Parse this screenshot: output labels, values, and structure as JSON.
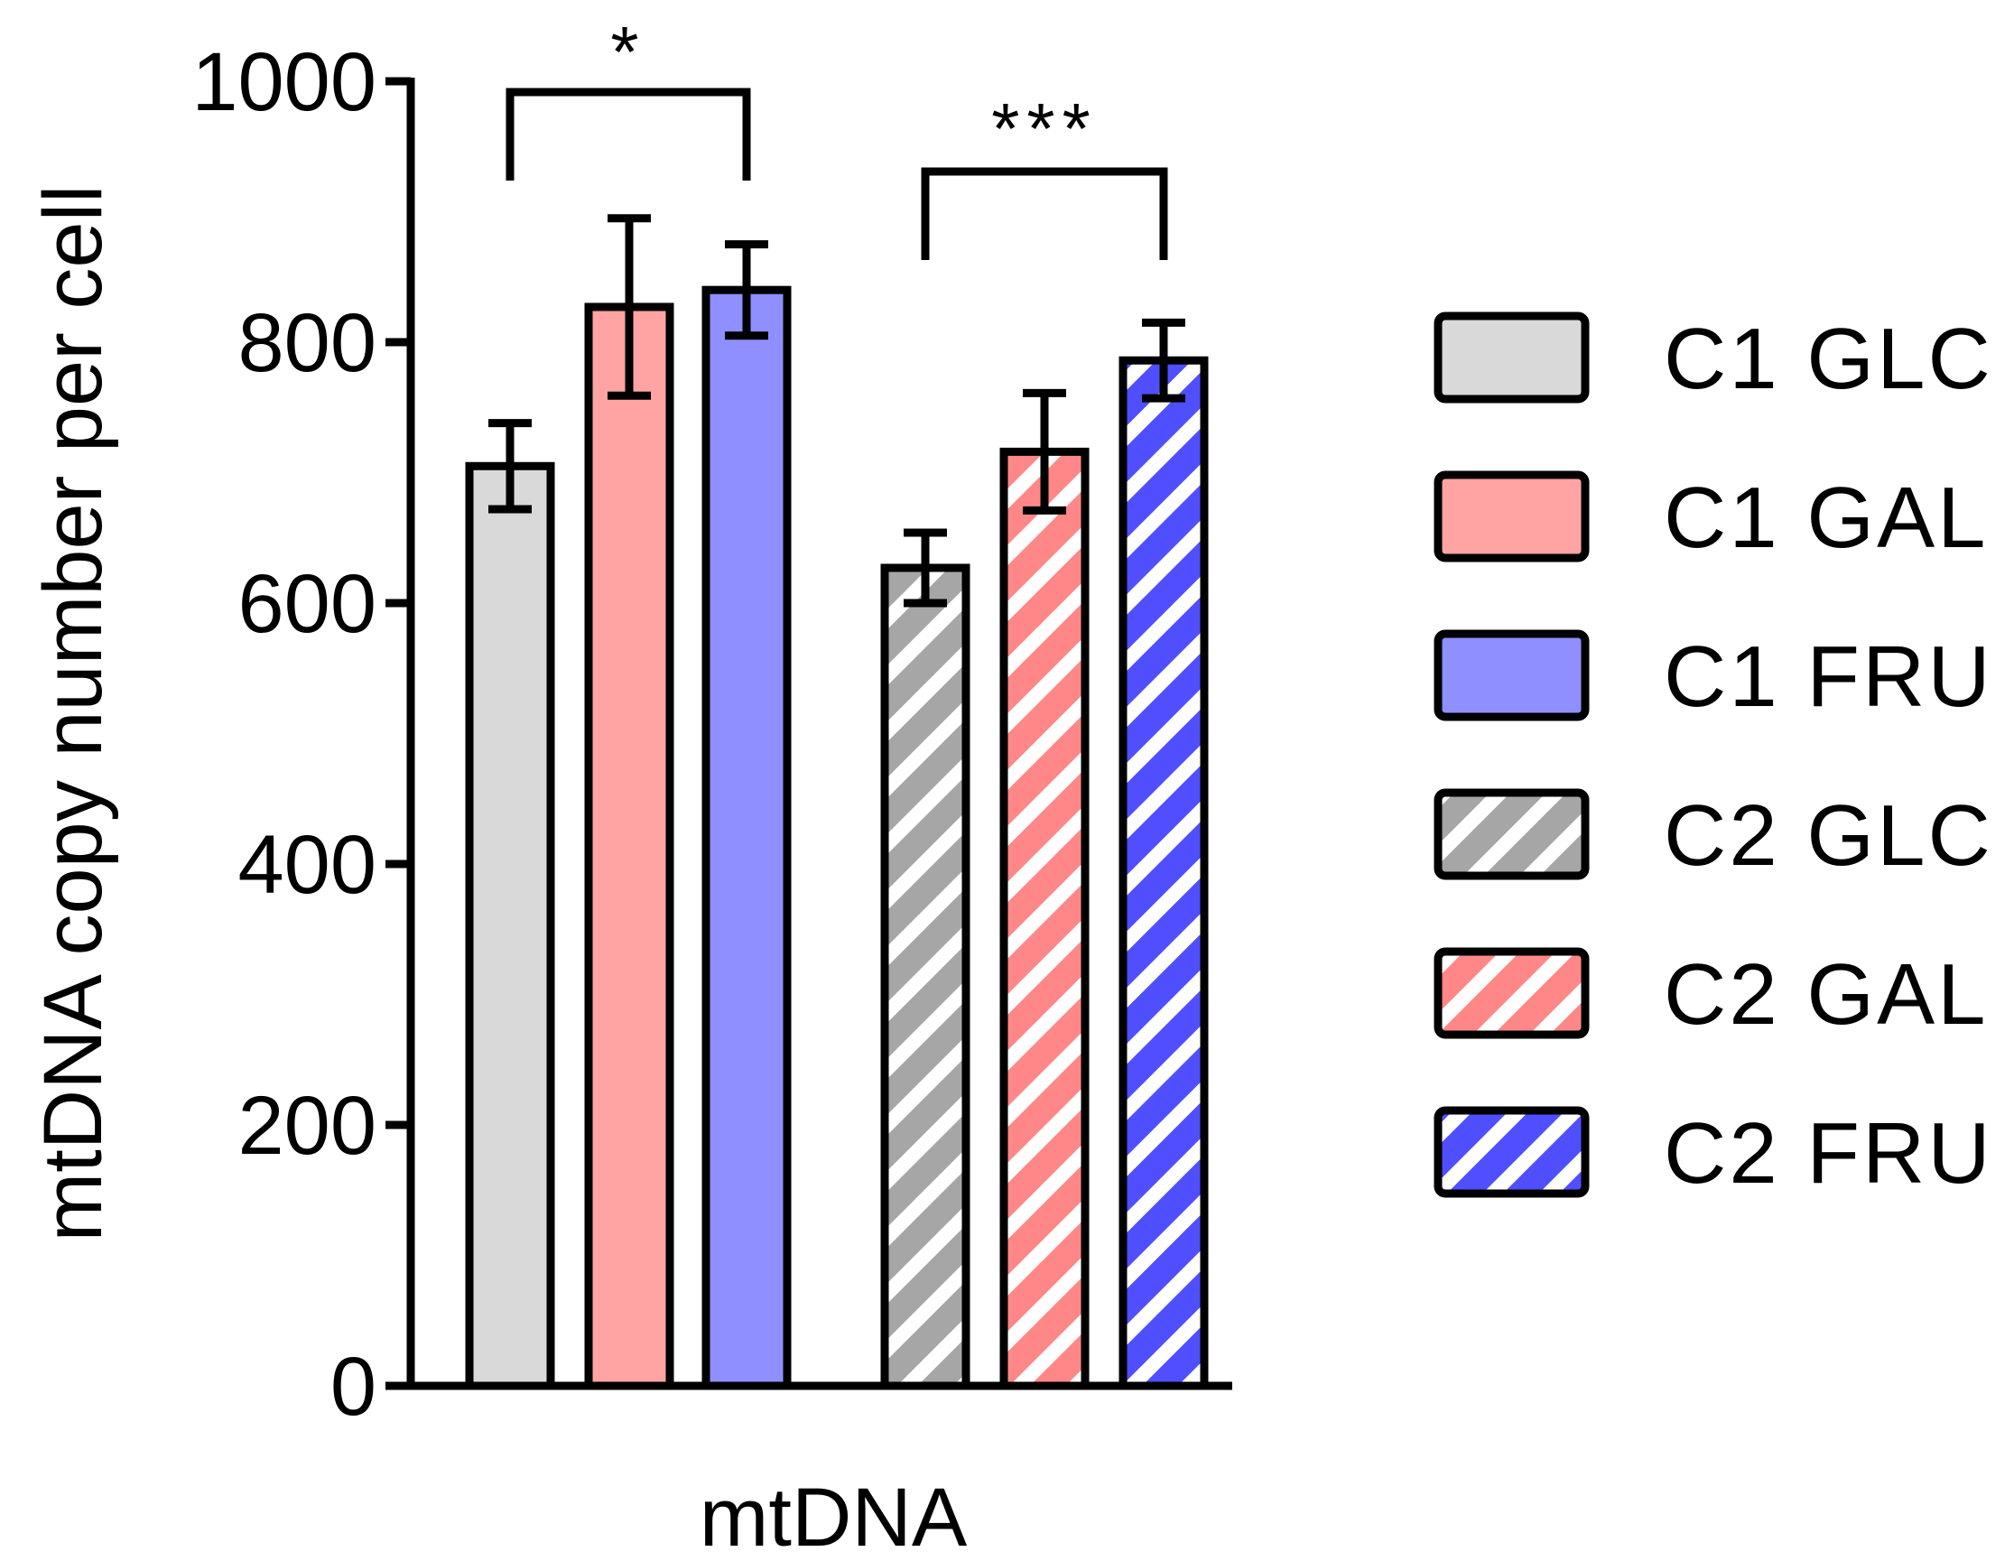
{
  "chart_data": {
    "type": "bar",
    "title": "",
    "xlabel": "mtDNA",
    "ylabel": "mtDNA copy number per cell",
    "ylim": [
      0,
      1000
    ],
    "yticks": [
      0,
      200,
      400,
      600,
      800,
      1000
    ],
    "categories": [
      "mtDNA"
    ],
    "series": [
      {
        "name": "C1 GLC",
        "value": 705,
        "error": 33,
        "color": "#d9d9d9",
        "hatched": false
      },
      {
        "name": "C1 GAL",
        "value": 827,
        "error": 68,
        "color": "#ffa3a3",
        "hatched": false
      },
      {
        "name": "C1 FRU",
        "value": 840,
        "error": 35,
        "color": "#8f8fff",
        "hatched": false
      },
      {
        "name": "C2 GLC",
        "value": 627,
        "error": 27,
        "color": "#a6a6a6",
        "hatched": true
      },
      {
        "name": "C2 GAL",
        "value": 716,
        "error": 45,
        "color": "#ff8787",
        "hatched": true
      },
      {
        "name": "C2 FRU",
        "value": 786,
        "error": 29,
        "color": "#4f4fff",
        "hatched": true
      }
    ],
    "significance": [
      {
        "between": [
          "C1 GLC",
          "C1 FRU"
        ],
        "label": "*"
      },
      {
        "between": [
          "C2 GLC",
          "C2 FRU"
        ],
        "label": "***"
      }
    ],
    "legend_position": "right"
  }
}
